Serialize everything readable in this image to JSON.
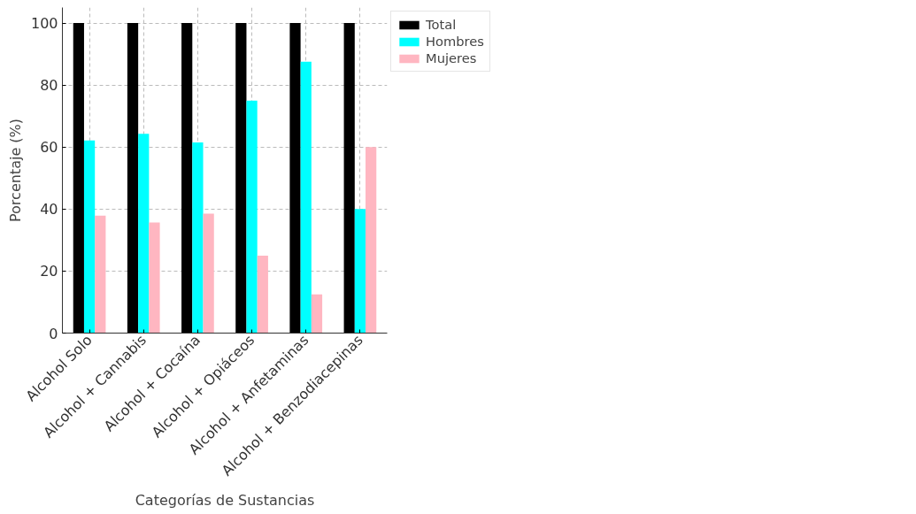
{
  "chart_data": {
    "type": "bar",
    "xlabel": "Categorías de Sustancias",
    "ylabel": "Porcentaje (%)",
    "categories": [
      "Alcohol Solo",
      "Alcohol + Cannabis",
      "Alcohol + Cocaína",
      "Alcohol + Opiáceos",
      "Alcohol + Anfetaminas",
      "Alcohol + Benzodiacepinas"
    ],
    "series": [
      {
        "name": "Total",
        "color": "#000000",
        "values": [
          100,
          100,
          100,
          100,
          100,
          100
        ]
      },
      {
        "name": "Hombres",
        "color": "#00ffff",
        "values": [
          62.1,
          64.3,
          61.5,
          75,
          87.5,
          40
        ]
      },
      {
        "name": "Mujeres",
        "color": "#ffb6c1",
        "values": [
          37.9,
          35.7,
          38.5,
          25,
          12.5,
          60
        ]
      }
    ],
    "ylim": [
      0,
      105
    ],
    "yticks": [
      0,
      20,
      40,
      60,
      80,
      100
    ],
    "grid": true,
    "legend": "top right"
  }
}
